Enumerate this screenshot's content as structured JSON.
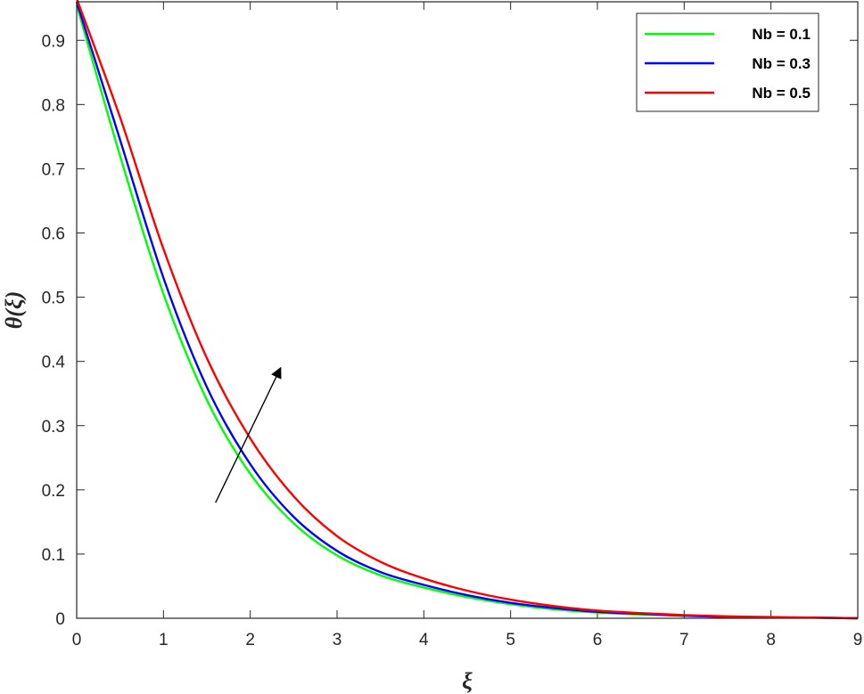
{
  "chart_data": {
    "type": "line",
    "xlabel": "ξ",
    "ylabel": "θ(ξ)",
    "xlim": [
      0,
      9
    ],
    "ylim": [
      0,
      0.96
    ],
    "xticks": [
      0,
      1,
      2,
      3,
      4,
      5,
      6,
      7,
      8,
      9
    ],
    "yticks": [
      0,
      0.1,
      0.2,
      0.3,
      0.4,
      0.5,
      0.6,
      0.7,
      0.8,
      0.9
    ],
    "xtick_labels": [
      "0",
      "1",
      "2",
      "3",
      "4",
      "5",
      "6",
      "7",
      "8",
      "9"
    ],
    "ytick_labels": [
      "0",
      "0.1",
      "0.2",
      "0.3",
      "0.4",
      "0.5",
      "0.6",
      "0.7",
      "0.8",
      "0.9"
    ],
    "grid": false,
    "legend_position": "top-right",
    "x": [
      0,
      0.5,
      1,
      1.5,
      2,
      2.5,
      3,
      3.5,
      4,
      4.5,
      5,
      5.5,
      6,
      6.5,
      7,
      7.5,
      8,
      8.5,
      9
    ],
    "series": [
      {
        "name": "Nb = 0.1",
        "color": "#00ff00",
        "values": [
          0.955,
          0.72,
          0.505,
          0.34,
          0.225,
          0.148,
          0.098,
          0.067,
          0.048,
          0.033,
          0.022,
          0.014,
          0.009,
          0.006,
          0.004,
          0.002,
          0.001,
          0.001,
          0.0
        ]
      },
      {
        "name": "Nb = 0.3",
        "color": "#0000ff",
        "values": [
          0.96,
          0.745,
          0.53,
          0.36,
          0.24,
          0.158,
          0.105,
          0.072,
          0.052,
          0.036,
          0.024,
          0.016,
          0.01,
          0.007,
          0.004,
          0.002,
          0.001,
          0.001,
          0.0
        ]
      },
      {
        "name": "Nb = 0.5",
        "color": "#ff0000",
        "values": [
          0.965,
          0.78,
          0.575,
          0.405,
          0.28,
          0.19,
          0.128,
          0.088,
          0.062,
          0.043,
          0.029,
          0.019,
          0.012,
          0.008,
          0.005,
          0.003,
          0.002,
          0.001,
          0.0
        ]
      }
    ],
    "annotations": [
      {
        "type": "arrow",
        "from": [
          1.6,
          0.18
        ],
        "to": [
          2.35,
          0.39
        ],
        "color": "#000000"
      }
    ]
  }
}
